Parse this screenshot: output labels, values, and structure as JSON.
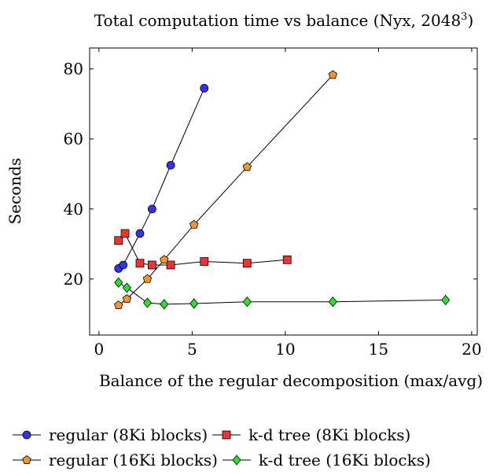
{
  "chart_data": {
    "type": "line",
    "title_main": "Total computation time vs balance (Nyx, 2048",
    "title_sup": "3",
    "title_end": ")",
    "xlabel": "Balance of the regular decomposition (max/avg)",
    "ylabel": "Seconds",
    "xlim": [
      -0.5,
      20.3
    ],
    "ylim": [
      4,
      86
    ],
    "xticks": [
      0,
      5,
      10,
      15,
      20
    ],
    "yticks": [
      20,
      40,
      60,
      80
    ],
    "grid": false,
    "legend_position": "bottom",
    "series": [
      {
        "name": "regular (8Ki blocks)",
        "color": "#3333ee",
        "marker": "circle",
        "x": [
          1.05,
          1.3,
          2.2,
          2.85,
          3.85,
          5.65
        ],
        "y": [
          23,
          24,
          33,
          40,
          52.5,
          74.5
        ]
      },
      {
        "name": "k-d tree (8Ki blocks)",
        "color": "#ee3333",
        "marker": "square",
        "x": [
          1.05,
          1.4,
          2.2,
          2.85,
          3.85,
          5.65,
          7.95,
          10.1
        ],
        "y": [
          31,
          33,
          24.5,
          24,
          24,
          25,
          24.5,
          25.5
        ]
      },
      {
        "name": "regular (16Ki blocks)",
        "color": "#f0962e",
        "marker": "pentagon",
        "x": [
          1.05,
          1.5,
          2.6,
          3.5,
          5.1,
          7.95,
          12.55
        ],
        "y": [
          12.5,
          14.3,
          20,
          25.5,
          35.5,
          52,
          78.3
        ]
      },
      {
        "name": "k-d tree (16Ki blocks)",
        "color": "#2ee02e",
        "marker": "diamond",
        "x": [
          1.05,
          1.5,
          2.6,
          3.5,
          5.1,
          7.95,
          12.55,
          18.6
        ],
        "y": [
          19,
          17.5,
          13.2,
          12.8,
          13,
          13.5,
          13.5,
          14
        ]
      }
    ]
  },
  "legend": {
    "rows": [
      [
        0,
        1
      ],
      [
        2,
        3
      ]
    ]
  }
}
